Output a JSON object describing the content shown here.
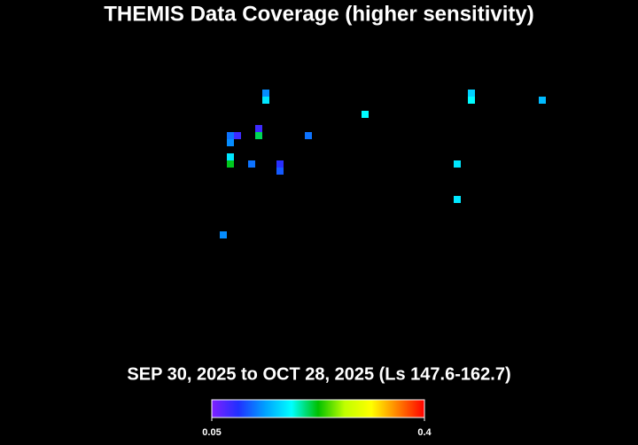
{
  "chart_data": {
    "type": "heatmap",
    "title": "THEMIS Data Coverage (higher sensitivity)",
    "subtitle": "SEP 30, 2025 to OCT 28, 2025 (Ls 147.6-162.7)",
    "xlim": [
      0,
      90
    ],
    "ylim": [
      0,
      45
    ],
    "x": [
      37,
      37,
      66,
      66,
      76,
      51,
      36,
      36,
      32,
      33,
      32,
      43,
      32,
      32,
      35,
      39,
      39,
      64,
      64,
      31
    ],
    "y": [
      12,
      13,
      12,
      13,
      13,
      15,
      17,
      18,
      18,
      18,
      19,
      18,
      21,
      22,
      22,
      22,
      23,
      22,
      27,
      32
    ],
    "values": [
      0.13,
      0.17,
      0.16,
      0.18,
      0.15,
      0.18,
      0.08,
      0.21,
      0.12,
      0.08,
      0.13,
      0.12,
      0.17,
      0.22,
      0.12,
      0.09,
      0.11,
      0.17,
      0.17,
      0.13
    ],
    "colormap": [
      "#8020ff",
      "#2030ff",
      "#00a0ff",
      "#00ffff",
      "#00c000",
      "#c0ff00",
      "#ffff00",
      "#ff8000",
      "#ff0000"
    ],
    "clim": [
      0.05,
      0.4
    ],
    "cticks": [
      0.05,
      0.4
    ]
  }
}
